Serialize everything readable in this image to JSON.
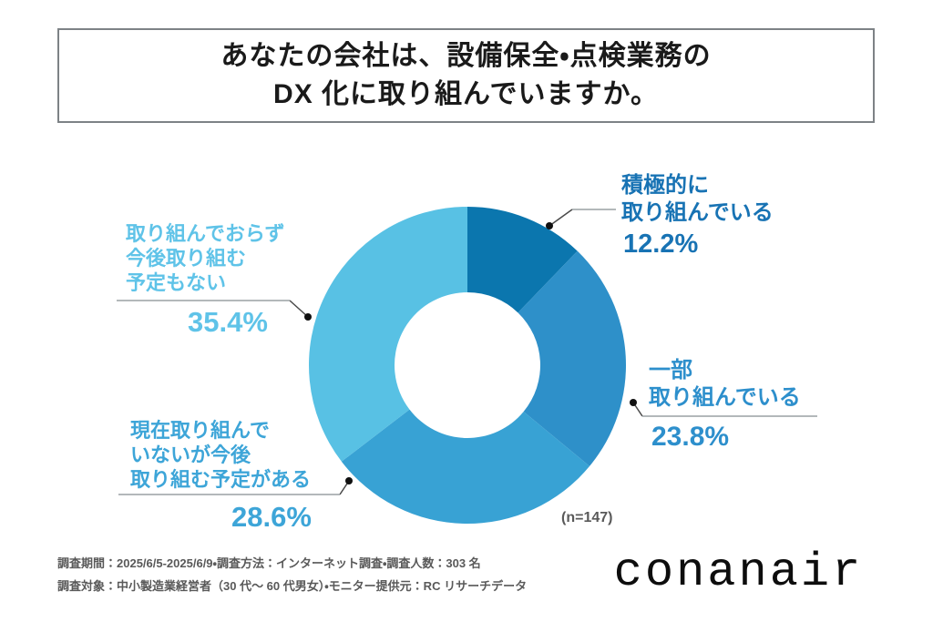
{
  "title": {
    "line1": "あなたの会社は、設備保全・点検業務の",
    "line2": "DX 化に取り組んでいますか。"
  },
  "chart_data": {
    "type": "pie",
    "subtype": "donut",
    "title": "あなたの会社は、設備保全・点検業務のDX化に取り組んでいますか。",
    "start_angle_deg": 0,
    "direction": "clockwise",
    "n_label": "(n=147)",
    "unit": "%",
    "segments": [
      {
        "label": "積極的に取り組んでいる",
        "value": 12.2,
        "display": "12.2%",
        "color": "#0b76ae",
        "label_color": "#1873b4"
      },
      {
        "label": "一部取り組んでいる",
        "value": 23.8,
        "display": "23.8%",
        "color": "#2e90c9",
        "label_color": "#2d8fcc"
      },
      {
        "label": "現在取り組んでいないが今後取り組む予定がある",
        "value": 28.6,
        "display": "28.6%",
        "color": "#38a2d4",
        "label_color": "#3da5d8"
      },
      {
        "label": "取り組んでおらず今後取り組む予定もない",
        "value": 35.4,
        "display": "35.4%",
        "color": "#58c1e4",
        "label_color": "#5fc3e8"
      }
    ]
  },
  "callouts": {
    "seg1": {
      "lines": [
        "積極的に",
        "取り組んでいる"
      ],
      "pct": "12.2%"
    },
    "seg2": {
      "lines": [
        "一部",
        "取り組んでいる"
      ],
      "pct": "23.8%"
    },
    "seg3": {
      "lines": [
        "現在取り組んで",
        "いないが今後",
        "取り組む予定がある"
      ],
      "pct": "28.6%"
    },
    "seg4": {
      "lines": [
        "取り組んでおらず",
        "今後取り組む",
        "予定もない"
      ],
      "pct": "35.4%"
    }
  },
  "footer": {
    "line1": "調査期間：2025/6/5-2025/6/9・調査方法：インターネット調査・調査人数：303 名",
    "line2": "調査対象：中小製造業経営者（30 代～ 60 代男女）・モニター提供元：RC リサーチデータ"
  },
  "logo": {
    "text": "conanair"
  }
}
